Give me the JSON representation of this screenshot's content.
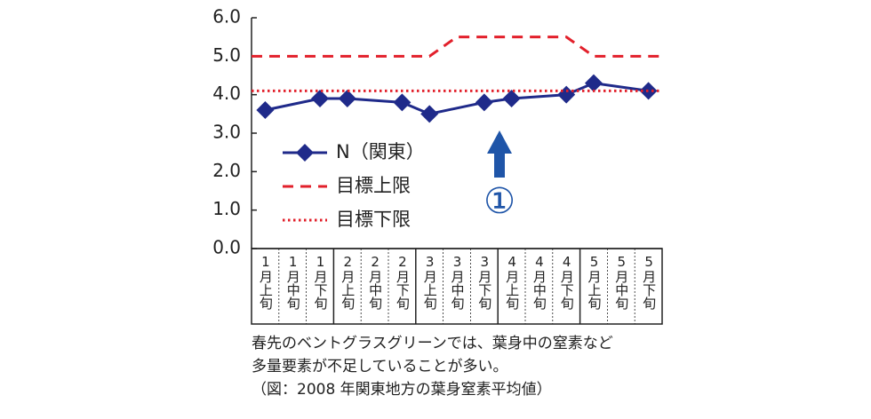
{
  "chart_data": {
    "type": "line",
    "categories": [
      "1月上旬",
      "1月中旬",
      "1月下旬",
      "2月上旬",
      "2月中旬",
      "2月下旬",
      "3月上旬",
      "3月中旬",
      "3月下旬",
      "4月上旬",
      "4月中旬",
      "4月下旬",
      "5月上旬",
      "5月中旬",
      "5月下旬"
    ],
    "series": [
      {
        "name": "N（関東）",
        "color": "#1f2a8a",
        "style": "solid-marker",
        "connect_nulls": true,
        "values": [
          3.6,
          null,
          3.9,
          3.9,
          null,
          3.8,
          3.5,
          null,
          3.8,
          3.9,
          null,
          4.0,
          4.3,
          null,
          4.1
        ]
      },
      {
        "name": "目標上限",
        "color": "#e2202b",
        "style": "dashed",
        "values": [
          5.0,
          5.0,
          5.0,
          5.0,
          5.0,
          5.0,
          5.0,
          5.5,
          5.5,
          5.5,
          5.5,
          5.5,
          5.0,
          5.0,
          5.0
        ]
      },
      {
        "name": "目標下限",
        "color": "#e2202b",
        "style": "dotted",
        "values": [
          4.1,
          4.1,
          4.1,
          4.1,
          4.1,
          4.1,
          4.1,
          4.1,
          4.1,
          4.1,
          4.1,
          4.1,
          4.1,
          4.1,
          4.1
        ]
      }
    ],
    "ylim": [
      0,
      6
    ],
    "yticks": [
      {
        "value": 0,
        "label": "0.0"
      },
      {
        "value": 1,
        "label": "1.0"
      },
      {
        "value": 2,
        "label": "2.0"
      },
      {
        "value": 3,
        "label": "3.0"
      },
      {
        "value": 4,
        "label": "4.0"
      },
      {
        "value": 5,
        "label": "5.0"
      },
      {
        "value": 6,
        "label": "6.0"
      }
    ],
    "grid": false,
    "legend": "left",
    "annotation": "①",
    "caption": [
      "春先のベントグラスグリーンでは、葉身中の窒素など",
      "多量要素が不足していることが多い。",
      "（図：2008 年関東地方の葉身窒素平均値）"
    ]
  }
}
